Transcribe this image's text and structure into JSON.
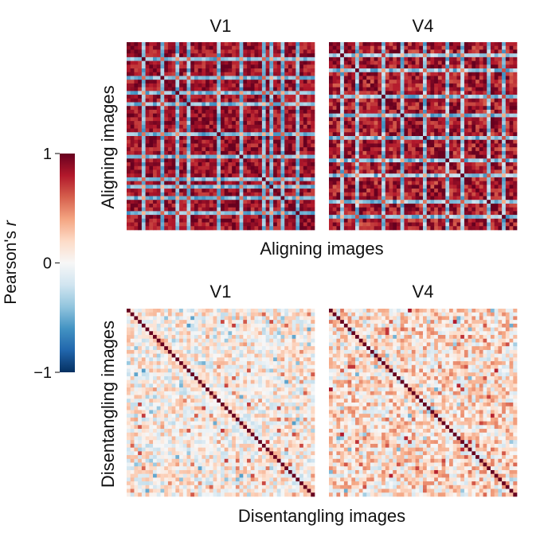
{
  "chart_data": {
    "type": "heatmap",
    "colorbar": {
      "label_prefix": "Pearson's ",
      "label_italic": "r",
      "ticks": [
        {
          "value": 1,
          "label": "1"
        },
        {
          "value": 0,
          "label": "0"
        },
        {
          "value": -1,
          "label": "−1"
        }
      ],
      "vmin": -1,
      "vmax": 1,
      "colormap": "RdBu_r",
      "stops": [
        "#053061",
        "#2166ac",
        "#4393c3",
        "#92c5de",
        "#d1e5f0",
        "#f7f7f7",
        "#fddbc7",
        "#f4a582",
        "#d6604d",
        "#b2182b",
        "#67001f"
      ]
    },
    "rows": [
      {
        "ylabel": "Aligning images",
        "xlabel": "Aligning images",
        "panels": [
          {
            "title": "V1",
            "size": 50,
            "diagonal": 1,
            "base_r": 0.85,
            "noise": 0.08,
            "band_indices": [
              4,
              9,
              13,
              16,
              24,
              30,
              36,
              38,
              41,
              45
            ],
            "band_r": 0.25,
            "cross_r": -0.45
          },
          {
            "title": "V4",
            "size": 50,
            "diagonal": 1,
            "base_r": 0.82,
            "noise": 0.1,
            "band_indices": [
              3,
              7,
              14,
              19,
              25,
              31,
              35,
              42,
              46
            ],
            "band_r": 0.3,
            "cross_r": -0.4
          }
        ]
      },
      {
        "ylabel": "Disentangling images",
        "xlabel": "Disentangling images",
        "panels": [
          {
            "title": "V1",
            "size": 50,
            "diagonal": 1,
            "base_r": 0.05,
            "noise": 0.14,
            "band_indices": [],
            "band_r": 0,
            "cross_r": 0
          },
          {
            "title": "V4",
            "size": 50,
            "diagonal": 1,
            "base_r": 0.14,
            "noise": 0.16,
            "band_indices": [],
            "band_r": 0,
            "cross_r": 0
          }
        ]
      }
    ]
  }
}
